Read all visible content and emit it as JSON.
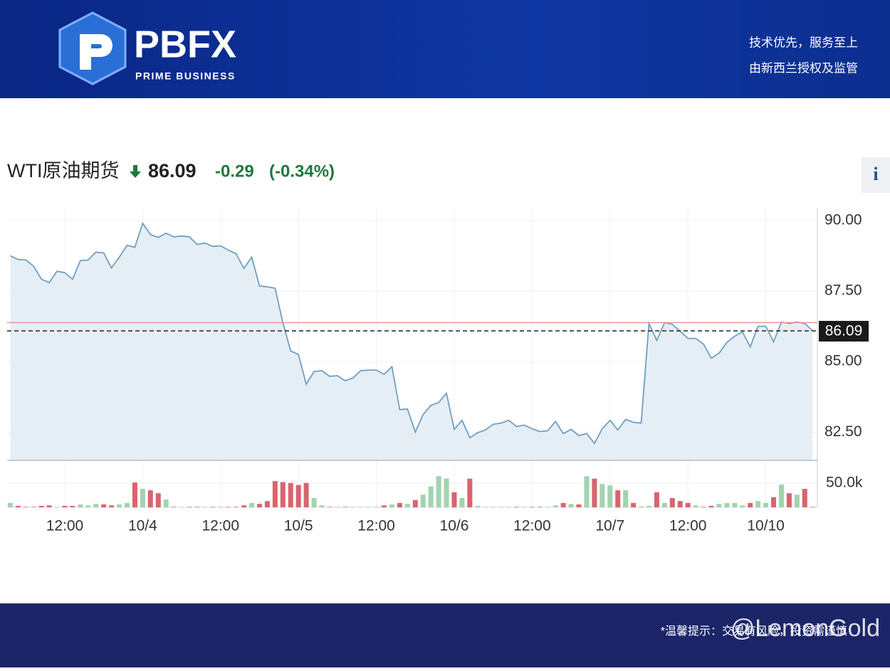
{
  "header": {
    "logo": "PBFX",
    "logo_sub": "PRIME BUSINESS",
    "tagline_1": "技术优先，服务至上",
    "tagline_2": "由新西兰授权及监管"
  },
  "footer": {
    "notice": "*温馨提示：交易有风险，投资需谨慎",
    "watermark": "@LemonGold"
  },
  "info_icon": "i",
  "chart_data": {
    "type": "line",
    "title": "WTI原油期货",
    "last_value": 86.09,
    "change": -0.29,
    "change_pct": {
      "value": -0.34,
      "label": "(-0.34%)"
    },
    "prev_close": 86.38,
    "categories": [
      null,
      null,
      null,
      null,
      null,
      null,
      null,
      "12:00",
      null,
      null,
      null,
      null,
      null,
      null,
      null,
      null,
      null,
      "10/4",
      null,
      null,
      null,
      null,
      null,
      null,
      null,
      null,
      null,
      "12:00",
      null,
      null,
      null,
      null,
      null,
      null,
      null,
      null,
      null,
      "10/5",
      null,
      null,
      null,
      null,
      null,
      null,
      null,
      null,
      null,
      "12:00",
      null,
      null,
      null,
      null,
      null,
      null,
      null,
      null,
      null,
      "10/6",
      null,
      null,
      null,
      null,
      null,
      null,
      null,
      null,
      null,
      "12:00",
      null,
      null,
      null,
      null,
      null,
      null,
      null,
      null,
      null,
      "10/7",
      null,
      null,
      null,
      null,
      null,
      null,
      null,
      null,
      null,
      "12:00",
      null,
      null,
      null,
      null,
      null,
      null,
      null,
      null,
      null,
      "10/10",
      null,
      null,
      null,
      null,
      null,
      null
    ],
    "values": [
      88.75,
      88.62,
      88.6,
      88.38,
      87.92,
      87.8,
      88.2,
      88.15,
      87.92,
      88.58,
      88.6,
      88.88,
      88.85,
      88.32,
      88.7,
      89.12,
      89.05,
      89.9,
      89.5,
      89.4,
      89.55,
      89.42,
      89.45,
      89.42,
      89.15,
      89.2,
      89.08,
      89.1,
      88.95,
      88.82,
      88.3,
      88.7,
      87.68,
      87.65,
      87.6,
      86.38,
      85.38,
      85.25,
      84.2,
      84.65,
      84.68,
      84.48,
      84.5,
      84.32,
      84.42,
      84.68,
      84.7,
      84.7,
      84.55,
      84.82,
      83.3,
      83.32,
      82.5,
      83.12,
      83.45,
      83.55,
      83.88,
      82.6,
      82.92,
      82.3,
      82.48,
      82.58,
      82.78,
      82.82,
      82.92,
      82.7,
      82.75,
      82.62,
      82.52,
      82.55,
      82.88,
      82.45,
      82.6,
      82.38,
      82.45,
      82.1,
      82.62,
      82.92,
      82.58,
      82.95,
      82.85,
      82.82,
      86.35,
      85.75,
      86.38,
      86.32,
      86.08,
      85.82,
      85.82,
      85.62,
      85.12,
      85.3,
      85.68,
      85.9,
      86.05,
      85.52,
      86.25,
      86.25,
      85.7,
      86.4,
      86.35,
      86.4,
      86.35,
      86.09
    ],
    "volumes": [
      9000,
      3000,
      1000,
      1000,
      3000,
      4000,
      1000,
      3000,
      3000,
      6000,
      4000,
      7000,
      6000,
      4000,
      6000,
      9000,
      51000,
      38000,
      35000,
      29000,
      16000,
      1000,
      1000,
      1000,
      1000,
      1000,
      1000,
      1000,
      1000,
      1000,
      4000,
      9000,
      7000,
      13000,
      54000,
      52000,
      50000,
      46000,
      50000,
      19000,
      4000,
      1000,
      1000,
      1000,
      1000,
      1000,
      1000,
      1000,
      4000,
      6000,
      9000,
      7000,
      15000,
      26000,
      43000,
      64000,
      59000,
      31000,
      19000,
      59000,
      3000,
      1000,
      1000,
      1000,
      1000,
      1000,
      1000,
      1000,
      1000,
      1000,
      4000,
      9000,
      7000,
      6000,
      64000,
      59000,
      48000,
      45000,
      35000,
      35000,
      9000,
      1000,
      3000,
      31000,
      9000,
      19000,
      13000,
      9000,
      4000,
      1000,
      3000,
      7000,
      9000,
      9000,
      4000,
      9000,
      13000,
      9000,
      21000,
      47000,
      29000,
      26000,
      38000,
      1000
    ],
    "ylim": [
      81.5,
      90.45
    ],
    "yticks": [
      {
        "value": 82.5,
        "label": "82.50"
      },
      {
        "value": 85,
        "label": "85.00"
      },
      {
        "value": 87.5,
        "label": "87.50"
      },
      {
        "value": 90,
        "label": "90.00"
      }
    ],
    "y2lim": [
      0,
      95000
    ],
    "y2ticks": [
      {
        "value": 50000,
        "label": "50.0k"
      }
    ],
    "grid": true,
    "color": "#6f9fc2",
    "area_color": "#e6eef5",
    "prev_close_color": "#e79a9a",
    "volume_up_color": "#a2d3b0",
    "volume_down_color": "#d9646e"
  }
}
